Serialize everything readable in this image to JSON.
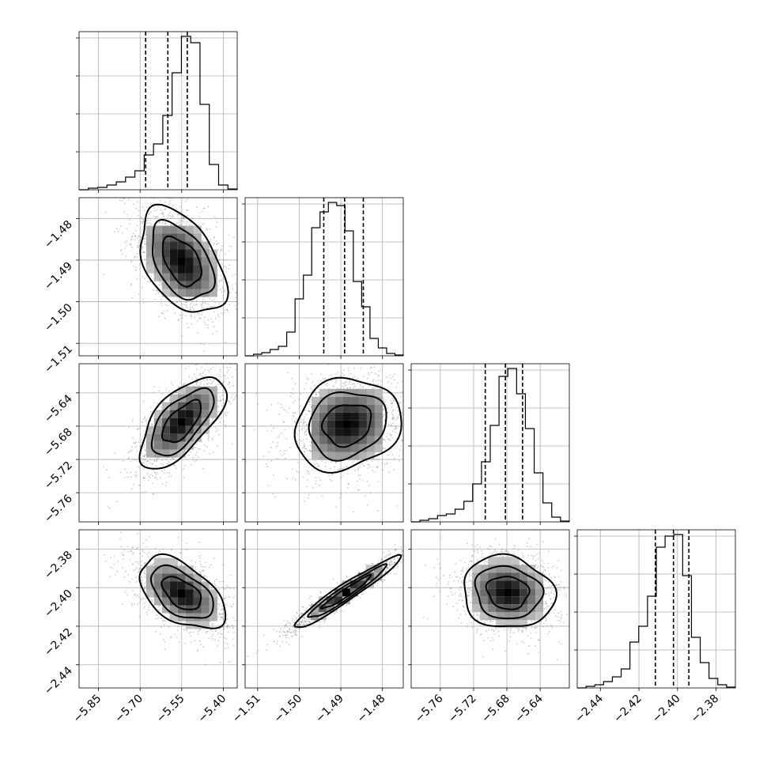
{
  "chart_data": {
    "type": "corner",
    "grid": true,
    "colors": {
      "line": "#000000",
      "grid": "#b0b0b0",
      "points": "#6e6e6e"
    },
    "parameters": [
      {
        "ticks": [
          -5.85,
          -5.7,
          -5.55,
          -5.4
        ],
        "tick_labels": [
          "−5.85",
          "−5.70",
          "−5.55",
          "−5.40"
        ],
        "range": [
          -5.92,
          -5.35
        ],
        "quantiles": [
          -5.68,
          -5.6,
          -5.53
        ],
        "histogram": [
          0,
          0.01,
          0.015,
          0.03,
          0.05,
          0.08,
          0.12,
          0.22,
          0.29,
          0.47,
          0.74,
          0.97,
          0.93,
          0.54,
          0.16,
          0.03,
          0.005
        ]
      },
      {
        "ticks": [
          -1.51,
          -1.5,
          -1.49,
          -1.48
        ],
        "tick_labels": [
          "−1.51",
          "−1.50",
          "−1.49",
          "−1.48"
        ],
        "range": [
          -1.513,
          -1.475
        ],
        "quantiles": [
          -1.4941,
          -1.4891,
          -1.4846
        ],
        "histogram": [
          0,
          0.01,
          0.02,
          0.04,
          0.06,
          0.15,
          0.36,
          0.51,
          0.81,
          0.91,
          0.97,
          0.95,
          0.79,
          0.47,
          0.31,
          0.11,
          0.05,
          0.015,
          0.005
        ]
      },
      {
        "ticks": [
          -5.76,
          -5.72,
          -5.68,
          -5.64
        ],
        "tick_labels": [
          "−5.76",
          "−5.72",
          "−5.68",
          "−5.64"
        ],
        "range": [
          -5.795,
          -5.605
        ],
        "quantiles": [
          -5.706,
          -5.6818,
          -5.6612
        ],
        "histogram": [
          0,
          0.01,
          0.02,
          0.04,
          0.05,
          0.08,
          0.13,
          0.24,
          0.38,
          0.61,
          0.92,
          0.97,
          0.81,
          0.59,
          0.31,
          0.12,
          0.03,
          0.005
        ]
      },
      {
        "ticks": [
          -2.44,
          -2.42,
          -2.4,
          -2.38
        ],
        "tick_labels": [
          "−2.44",
          "−2.42",
          "−2.40",
          "−2.38"
        ],
        "range": [
          -2.452,
          -2.37
        ],
        "quantiles": [
          -2.4115,
          -2.4021,
          -2.3941
        ],
        "histogram": [
          0,
          0.01,
          0.02,
          0.04,
          0.07,
          0.12,
          0.29,
          0.39,
          0.58,
          0.89,
          0.96,
          0.97,
          0.71,
          0.32,
          0.16,
          0.06,
          0.02,
          0.005
        ]
      }
    ],
    "pairs": [
      {
        "x": 0,
        "y": 1,
        "center": [
          -5.55,
          -1.4903
        ],
        "spread": [
          0.07,
          0.0058
        ],
        "rho": -0.45
      },
      {
        "x": 0,
        "y": 2,
        "center": [
          -5.55,
          -5.675
        ],
        "spread": [
          0.07,
          0.025
        ],
        "rho": 0.65
      },
      {
        "x": 1,
        "y": 2,
        "center": [
          -1.4885,
          -5.678
        ],
        "spread": [
          0.0058,
          0.025
        ],
        "rho": 0.15
      },
      {
        "x": 0,
        "y": 3,
        "center": [
          -5.55,
          -2.403
        ],
        "spread": [
          0.07,
          0.0085
        ],
        "rho": -0.5
      },
      {
        "x": 1,
        "y": 3,
        "center": [
          -1.4887,
          -2.4025
        ],
        "spread": [
          0.0058,
          0.0085
        ],
        "rho": 0.96
      },
      {
        "x": 2,
        "y": 3,
        "center": [
          -5.679,
          -2.4025
        ],
        "spread": [
          0.025,
          0.0085
        ],
        "rho": -0.1
      }
    ]
  }
}
